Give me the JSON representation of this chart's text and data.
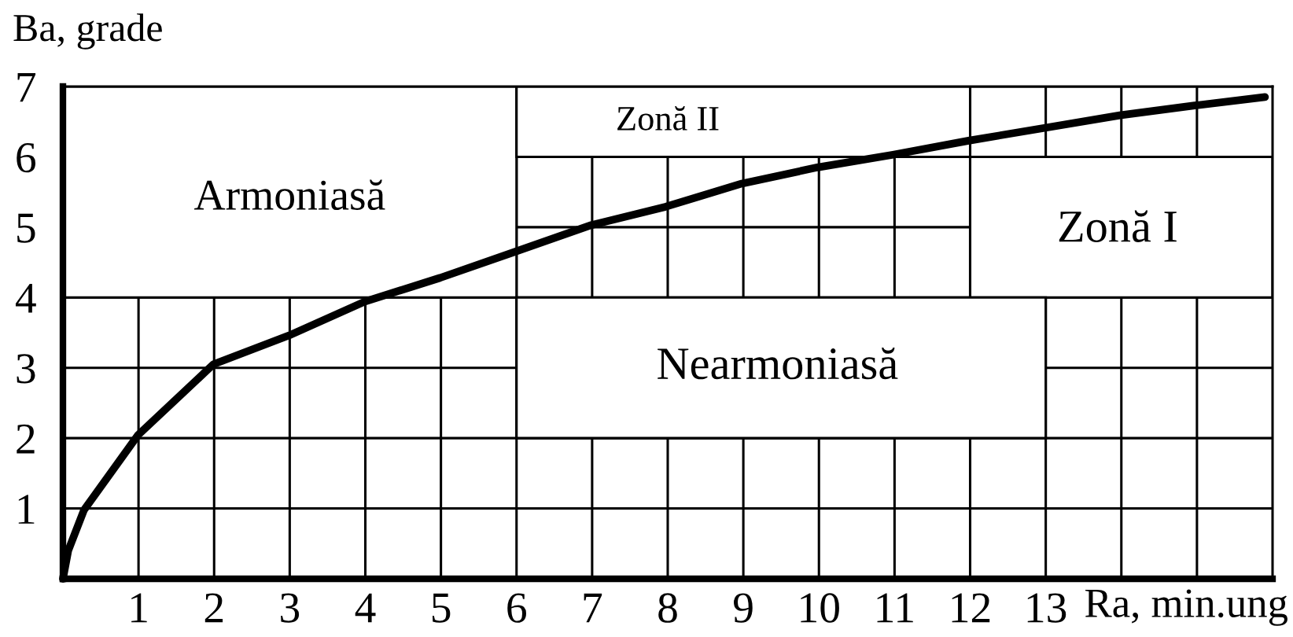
{
  "chart_data": {
    "type": "line",
    "xlabel": "Ra, min.ung",
    "ylabel": "Ba, grade",
    "x": [
      0,
      0.07,
      0.28,
      0.99,
      1.99,
      2.99,
      3.99,
      4.99,
      5.98,
      6.99,
      7.97,
      8.98,
      9.98,
      10.98,
      11.98,
      12.98,
      13.98,
      14.97,
      15.9
    ],
    "series": [
      {
        "color": "#000000",
        "values": [
          0,
          0.4,
          0.98,
          2.04,
          3.05,
          3.46,
          3.94,
          4.28,
          4.65,
          5.03,
          5.29,
          5.62,
          5.85,
          6.03,
          6.23,
          6.41,
          6.59,
          6.73,
          6.85
        ]
      }
    ],
    "xlim": [
      0,
      16
    ],
    "ylim": [
      0,
      7
    ],
    "xticks": [
      1,
      2,
      3,
      4,
      5,
      6,
      7,
      8,
      9,
      10,
      11,
      12,
      13,
      {
        "value": 14,
        "label": null
      },
      {
        "value": 15,
        "label": null
      }
    ],
    "yticks": [
      1,
      2,
      3,
      4,
      5,
      6,
      7
    ],
    "grid": true,
    "marker": "none",
    "line_style": "solid",
    "annotations": [
      "Armoniasă",
      "Zonă II",
      "Zonă I",
      "Nearmoniasă"
    ]
  }
}
